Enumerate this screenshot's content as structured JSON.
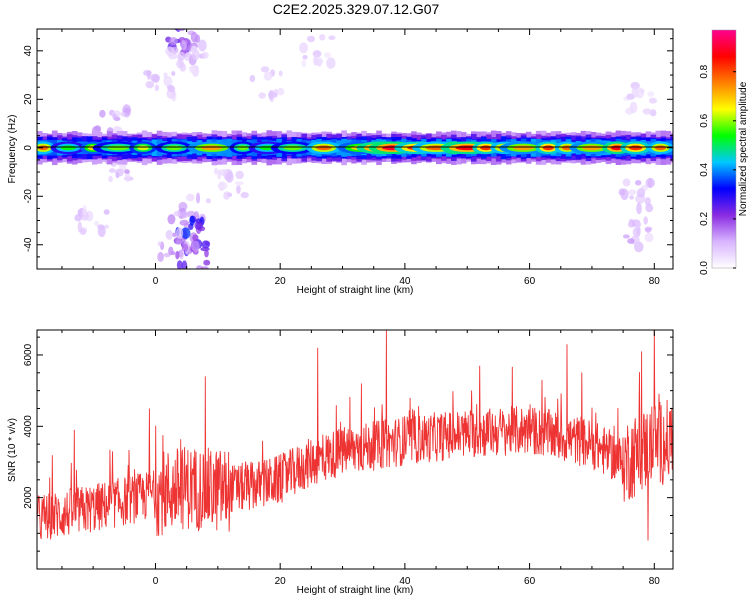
{
  "title": "C2E2.2025.329.07.12.G07",
  "chart_data": [
    {
      "type": "heatmap",
      "xlabel": "Height of straight line (km)",
      "ylabel": "Frequency (Hz)",
      "xlim": [
        -19,
        83
      ],
      "ylim": [
        -50,
        49
      ],
      "xticks": [
        "0",
        "20",
        "40",
        "60",
        "80"
      ],
      "xtick_values": [
        0,
        20,
        40,
        60,
        80
      ],
      "yticks": [
        "-40",
        "-20",
        "0",
        "20",
        "40"
      ],
      "ytick_values": [
        -40,
        -20,
        0,
        20,
        40
      ],
      "band_center_hz": 0,
      "band_halfwidth_hz": 4,
      "colorbar": {
        "label": "Normalized spectral amplitude",
        "ticks": [
          "0.0",
          "0.2",
          "0.4",
          "0.6",
          "0.8"
        ],
        "tick_values": [
          0.0,
          0.2,
          0.4,
          0.6,
          0.8
        ],
        "range": [
          0,
          0.97
        ],
        "colors": [
          "#ffffff",
          "#d8b4ff",
          "#8a2be2",
          "#0000ff",
          "#00c8ff",
          "#00ff00",
          "#ffff00",
          "#ff8000",
          "#ff0000",
          "#ff0090"
        ]
      },
      "peaks": [
        {
          "x": -18,
          "amp": 0.8
        },
        {
          "x": -14,
          "amp": 0.55
        },
        {
          "x": -10,
          "amp": 0.7
        },
        {
          "x": -6,
          "amp": 0.6
        },
        {
          "x": -2,
          "amp": 0.65
        },
        {
          "x": 3,
          "amp": 0.6
        },
        {
          "x": 9,
          "amp": 0.75
        },
        {
          "x": 14,
          "amp": 0.6
        },
        {
          "x": 18,
          "amp": 0.55
        },
        {
          "x": 22,
          "amp": 0.6
        },
        {
          "x": 27,
          "amp": 0.8
        },
        {
          "x": 33,
          "amp": 0.7
        },
        {
          "x": 36,
          "amp": 0.9
        },
        {
          "x": 38,
          "amp": 0.92
        },
        {
          "x": 42,
          "amp": 0.85
        },
        {
          "x": 45,
          "amp": 0.8
        },
        {
          "x": 48,
          "amp": 0.92
        },
        {
          "x": 50,
          "amp": 0.9
        },
        {
          "x": 53,
          "amp": 0.85
        },
        {
          "x": 56,
          "amp": 0.8
        },
        {
          "x": 59,
          "amp": 0.75
        },
        {
          "x": 63,
          "amp": 0.85
        },
        {
          "x": 66,
          "amp": 0.8
        },
        {
          "x": 70,
          "amp": 0.75
        },
        {
          "x": 74,
          "amp": 0.9
        },
        {
          "x": 77,
          "amp": 0.85
        },
        {
          "x": 81,
          "amp": 0.8
        }
      ],
      "scatter_clusters": [
        {
          "x": 4,
          "y": 45,
          "amp": 0.25
        },
        {
          "x": 6,
          "y": 40,
          "amp": 0.15
        },
        {
          "x": 4,
          "y": 35,
          "amp": 0.1
        },
        {
          "x": 1,
          "y": 25,
          "amp": 0.1
        },
        {
          "x": -7,
          "y": 12,
          "amp": 0.12
        },
        {
          "x": -6,
          "y": -8,
          "amp": 0.12
        },
        {
          "x": 12,
          "y": -15,
          "amp": 0.1
        },
        {
          "x": 6,
          "y": -25,
          "amp": 0.12
        },
        {
          "x": 5,
          "y": -35,
          "amp": 0.3
        },
        {
          "x": 6,
          "y": -44,
          "amp": 0.25
        },
        {
          "x": 3,
          "y": -40,
          "amp": 0.15
        },
        {
          "x": -10,
          "y": -30,
          "amp": 0.1
        },
        {
          "x": 77,
          "y": -20,
          "amp": 0.12
        },
        {
          "x": 77,
          "y": -35,
          "amp": 0.12
        },
        {
          "x": 78,
          "y": 20,
          "amp": 0.08
        },
        {
          "x": 26,
          "y": 40,
          "amp": 0.08
        },
        {
          "x": 18,
          "y": 27,
          "amp": 0.08
        }
      ]
    },
    {
      "type": "line",
      "xlabel": "Height of straight line (km)",
      "ylabel": "SNR (10 * v/v)",
      "xlim": [
        -19,
        83
      ],
      "ylim": [
        0,
        6700
      ],
      "xticks": [
        "0",
        "20",
        "40",
        "60",
        "80"
      ],
      "xtick_values": [
        0,
        20,
        40,
        60,
        80
      ],
      "yticks": [
        "2000",
        "4000",
        "6000"
      ],
      "ytick_values": [
        2000,
        4000,
        6000
      ],
      "color": "#ee3333",
      "trend": {
        "x": [
          -19,
          -10,
          0,
          5,
          10,
          15,
          20,
          25,
          30,
          40,
          50,
          60,
          70,
          75,
          80,
          83
        ],
        "y": [
          1400,
          1700,
          2100,
          2300,
          2200,
          2300,
          2500,
          3000,
          3300,
          3600,
          3800,
          3900,
          3500,
          3000,
          3500,
          3600
        ]
      },
      "spikes": [
        {
          "x": -13,
          "y": 3900
        },
        {
          "x": -1,
          "y": 4500
        },
        {
          "x": 8,
          "y": 5400
        },
        {
          "x": 26,
          "y": 6200
        },
        {
          "x": 33,
          "y": 5200
        },
        {
          "x": 37,
          "y": 6700
        },
        {
          "x": 52,
          "y": 5700
        },
        {
          "x": 62,
          "y": 5300
        },
        {
          "x": 66,
          "y": 6300
        },
        {
          "x": 78,
          "y": 6100
        },
        {
          "x": 80,
          "y": 6700
        },
        {
          "x": 79,
          "y": 800
        }
      ]
    }
  ]
}
